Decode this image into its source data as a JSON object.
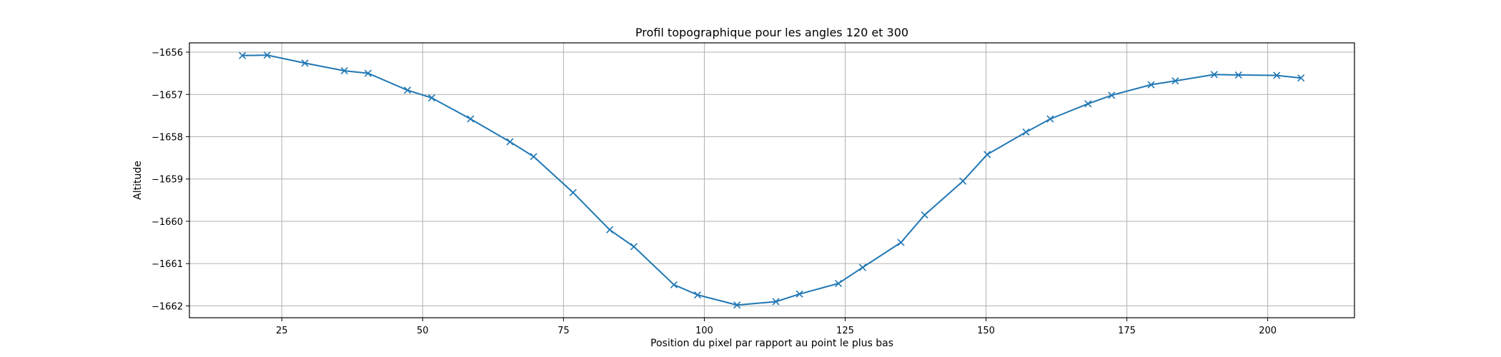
{
  "chart_data": {
    "type": "line",
    "title": "Profil topographique pour les angles 120 et 300",
    "xlabel": "Position du pixel par rapport au point le plus bas",
    "ylabel": "Altitude",
    "xlim": [
      8.6,
      215.4
    ],
    "ylim": [
      -1662.28,
      -1655.78
    ],
    "xticks": [
      25,
      50,
      75,
      100,
      125,
      150,
      175,
      200
    ],
    "yticks": [
      -1656,
      -1657,
      -1658,
      -1659,
      -1660,
      -1661,
      -1662
    ],
    "xtick_labels": [
      "25",
      "50",
      "75",
      "100",
      "125",
      "150",
      "175",
      "200"
    ],
    "ytick_labels": [
      "−1656",
      "−1657",
      "−1658",
      "−1659",
      "−1660",
      "−1661",
      "−1662"
    ],
    "grid": true,
    "marker": "x",
    "color": "#1f77b4",
    "series": [
      {
        "x": [
          18,
          22.4,
          29.1,
          36.1,
          40.3,
          47.3,
          51.6,
          58.5,
          65.5,
          69.7,
          76.7,
          83.2,
          87.5,
          94.6,
          98.8,
          105.8,
          112.7,
          116.9,
          123.8,
          128.1,
          134.9,
          139.1,
          145.9,
          150.2,
          157.1,
          161.4,
          168.1,
          172.3,
          179.3,
          183.6,
          190.5,
          194.8,
          201.6,
          205.9
        ],
        "y": [
          -1656.08,
          -1656.07,
          -1656.26,
          -1656.44,
          -1656.5,
          -1656.9,
          -1657.08,
          -1657.58,
          -1658.12,
          -1658.47,
          -1659.32,
          -1660.2,
          -1660.6,
          -1661.5,
          -1661.74,
          -1661.98,
          -1661.9,
          -1661.72,
          -1661.47,
          -1661.09,
          -1660.5,
          -1659.85,
          -1659.05,
          -1658.42,
          -1657.89,
          -1657.58,
          -1657.22,
          -1657.02,
          -1656.77,
          -1656.68,
          -1656.53,
          -1656.54,
          -1656.55,
          -1656.61
        ]
      }
    ]
  }
}
